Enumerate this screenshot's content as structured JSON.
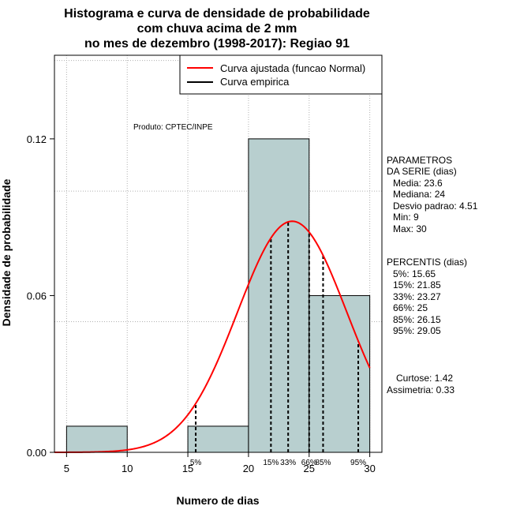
{
  "chart_data": {
    "type": "bar",
    "title_lines": [
      "Histograma e curva de densidade de probabilidade",
      "com chuva acima de 2 mm",
      "no mes de dezembro (1998-2017): Regiao 91"
    ],
    "xlabel": "Numero de dias",
    "ylabel": "Densidade de probabilidade",
    "xlim": [
      4,
      31
    ],
    "ylim": [
      0,
      0.152
    ],
    "x_ticks": [
      5,
      10,
      15,
      20,
      25,
      30
    ],
    "y_ticks": [
      0.0,
      0.06,
      0.12
    ],
    "y_tick_labels": [
      "0.00",
      "0.06",
      "0.12"
    ],
    "grid": true,
    "grid_x": [
      5,
      10,
      15,
      20,
      25,
      30
    ],
    "grid_y": [
      0,
      0.05,
      0.1,
      0.15
    ],
    "bins": [
      {
        "start": 5,
        "end": 10,
        "density": 0.01
      },
      {
        "start": 10,
        "end": 15,
        "density": 0.0
      },
      {
        "start": 15,
        "end": 20,
        "density": 0.01
      },
      {
        "start": 20,
        "end": 25,
        "density": 0.12
      },
      {
        "start": 25,
        "end": 30,
        "density": 0.06
      }
    ],
    "normal_curve": {
      "mean": 23.6,
      "sd": 4.51,
      "x_start": 4,
      "x_end": 30
    },
    "percentiles": [
      {
        "label": "5%",
        "value": 15.65
      },
      {
        "label": "15%",
        "value": 21.85
      },
      {
        "label": "33%",
        "value": 23.27
      },
      {
        "label": "66%",
        "value": 25
      },
      {
        "label": "85%",
        "value": 26.15
      },
      {
        "label": "95%",
        "value": 29.05
      }
    ],
    "legend": {
      "position": "top-right",
      "entries": [
        {
          "label": "Curva ajustada (funcao Normal)",
          "color": "#ff0000"
        },
        {
          "label": "Curva empirica",
          "color": "#000000"
        }
      ]
    },
    "annotation": "Produto: CPTEC/INPE",
    "bar_color": "#b8cfcf",
    "curve_color": "#ff0000"
  },
  "sidebar": {
    "params_title": [
      "PARAMETROS",
      "DA SERIE (dias)"
    ],
    "params": [
      "Media: 23.6",
      "Mediana: 24",
      "Desvio padrao: 4.51",
      "Min: 9",
      "Max: 30"
    ],
    "percentis_title": "PERCENTIS (dias)",
    "percentis": [
      "5%: 15.65",
      "15%: 21.85",
      "33%: 23.27",
      "66%: 25",
      "85%: 26.15",
      "95%: 29.05"
    ],
    "stats": [
      "Curtose: 1.42",
      "Assimetria: 0.33"
    ]
  }
}
